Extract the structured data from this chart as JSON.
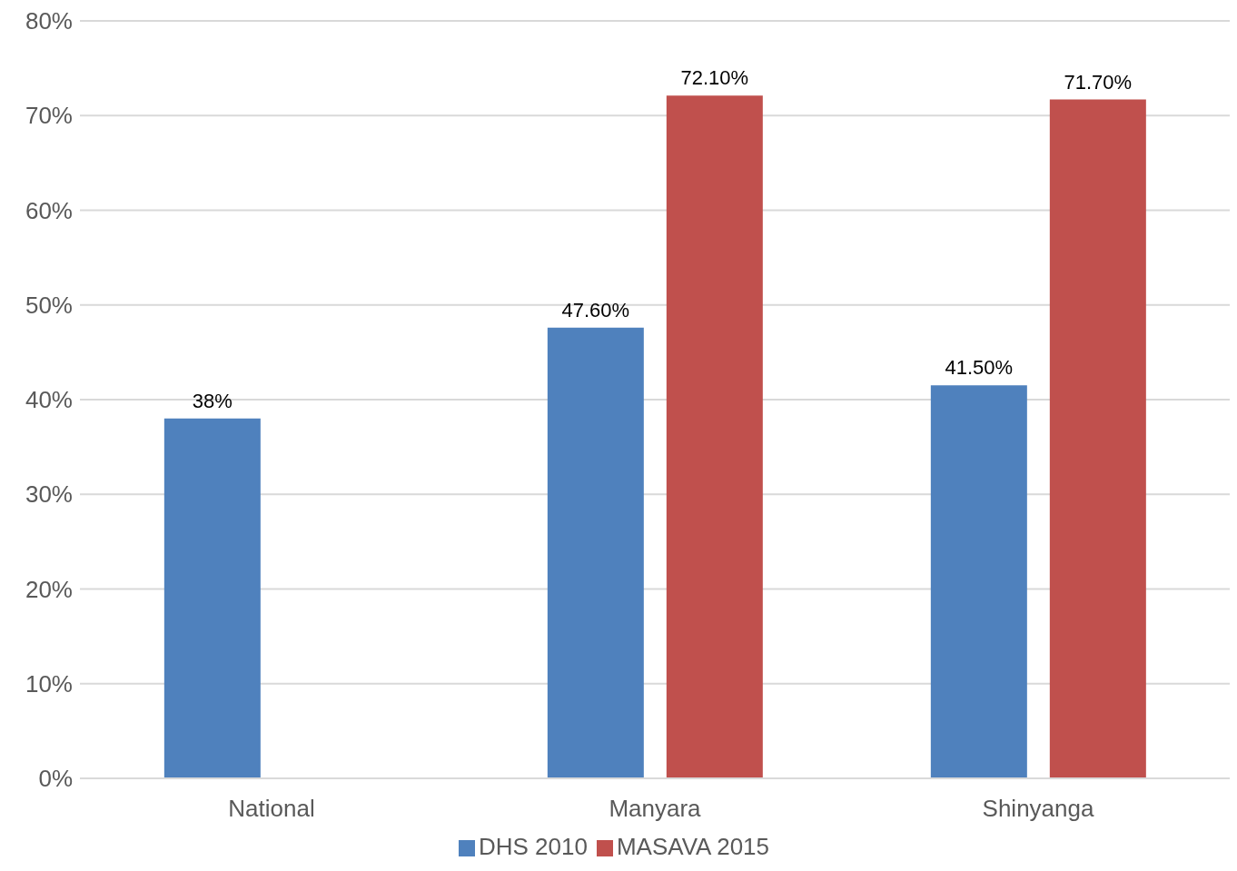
{
  "chart_data": {
    "type": "bar",
    "categories": [
      "National",
      "Manyara",
      "Shinyanga"
    ],
    "series": [
      {
        "name": "DHS 2010",
        "color": "#4f81bd",
        "values": [
          38,
          47.6,
          41.5
        ],
        "value_labels": [
          "38%",
          "47.60%",
          "41.50%"
        ]
      },
      {
        "name": "MASAVA 2015",
        "color": "#c0504d",
        "values": [
          null,
          72.1,
          71.7
        ],
        "value_labels": [
          null,
          "72.10%",
          "71.70%"
        ]
      }
    ],
    "ylim": [
      0,
      80
    ],
    "yticks": [
      {
        "value": 0,
        "label": "0%"
      },
      {
        "value": 10,
        "label": "10%"
      },
      {
        "value": 20,
        "label": "20%"
      },
      {
        "value": 30,
        "label": "30%"
      },
      {
        "value": 40,
        "label": "40%"
      },
      {
        "value": 50,
        "label": "50%"
      },
      {
        "value": 60,
        "label": "60%"
      },
      {
        "value": 70,
        "label": "70%"
      },
      {
        "value": 80,
        "label": "80%"
      }
    ],
    "grid": "y",
    "legend": "bottom"
  }
}
